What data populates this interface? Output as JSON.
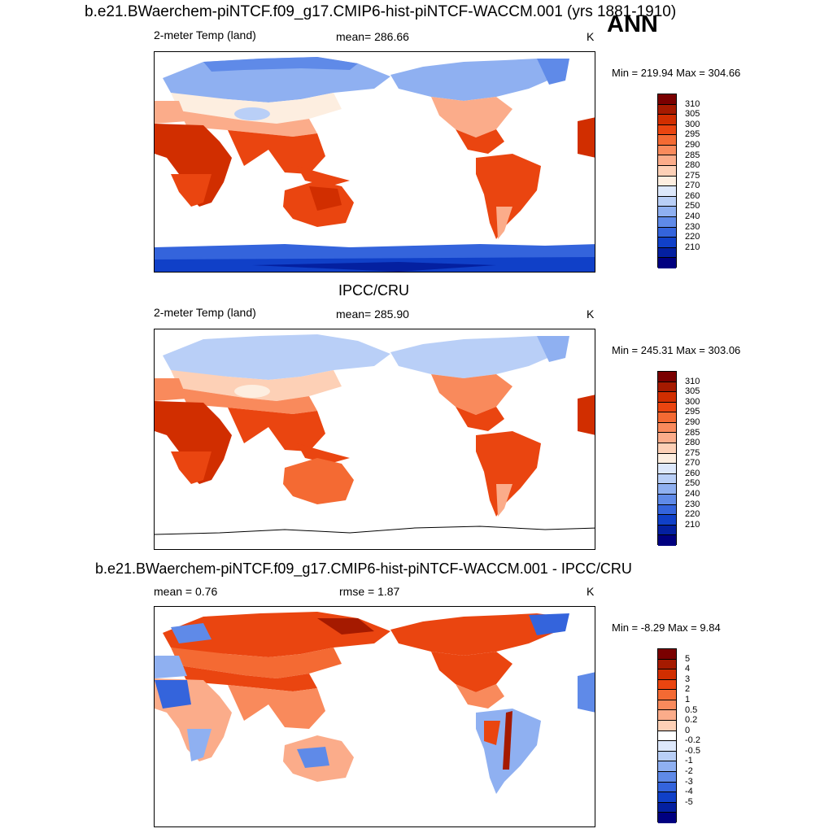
{
  "main_title": "b.e21.BWaerchem-piNTCF.f09_g17.CMIP6-hist-piNTCF-WACCM.001 (yrs 1881-1910)",
  "season": "ANN",
  "panels": [
    {
      "title": "",
      "variable": "2-meter Temp (land)",
      "stat": "mean= 286.66",
      "units": "K",
      "minmax": "Min = 219.94 Max = 304.66",
      "ticks": [
        "310",
        "305",
        "300",
        "295",
        "290",
        "285",
        "280",
        "275",
        "270",
        "260",
        "250",
        "240",
        "230",
        "220",
        "210"
      ]
    },
    {
      "title": "IPCC/CRU",
      "variable": "2-meter Temp (land)",
      "stat": "mean= 285.90",
      "units": "K",
      "minmax": "Min = 245.31 Max = 303.06",
      "ticks": [
        "310",
        "305",
        "300",
        "295",
        "290",
        "285",
        "280",
        "275",
        "270",
        "260",
        "250",
        "240",
        "230",
        "220",
        "210"
      ]
    },
    {
      "title": "b.e21.BWaerchem-piNTCF.f09_g17.CMIP6-hist-piNTCF-WACCM.001 - IPCC/CRU",
      "variable": "mean =   0.76",
      "stat": "rmse =   1.87",
      "units": "K",
      "minmax": "Min =  -8.29 Max =   9.84",
      "ticks": [
        "5",
        "4",
        "3",
        "2",
        "1",
        "0.5",
        "0.2",
        "0",
        "-0.2",
        "-0.5",
        "-1",
        "-2",
        "-3",
        "-4",
        "-5"
      ]
    }
  ],
  "colors": {
    "temp_scale": [
      "#7a0000",
      "#a51a00",
      "#d12e00",
      "#ea4510",
      "#f46a33",
      "#f98a5c",
      "#fbac8a",
      "#fdd0b6",
      "#fdeee0",
      "#dde8fb",
      "#b9cff7",
      "#8fb0f1",
      "#5f8ae8",
      "#3464dc",
      "#1040c8",
      "#0420a0",
      "#000080"
    ],
    "diff_scale": [
      "#7a0000",
      "#a51a00",
      "#d12e00",
      "#ea4510",
      "#f46a33",
      "#f98a5c",
      "#fbac8a",
      "#fdd0b6",
      "#ffffff",
      "#dde8fb",
      "#b9cff7",
      "#8fb0f1",
      "#5f8ae8",
      "#3464dc",
      "#1040c8",
      "#0420a0",
      "#000080"
    ]
  }
}
